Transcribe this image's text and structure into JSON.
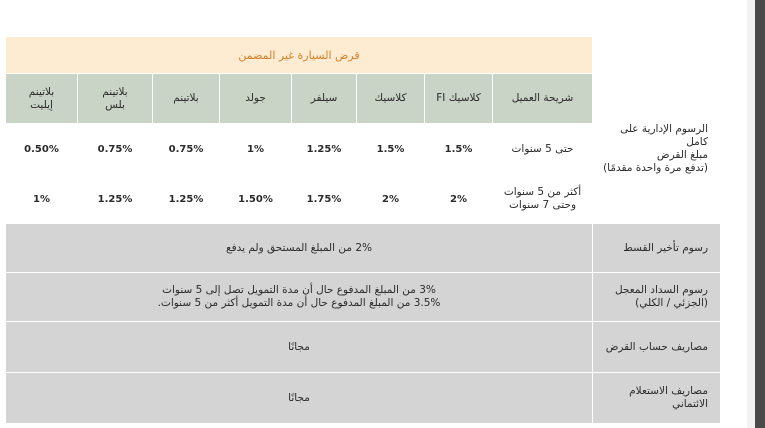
{
  "title": "قرض السيارة غير المضمن",
  "segment_header": "شريحة العميل",
  "segments": [
    "كلاسيك FI",
    "كلاسيك",
    "سيلفر",
    "جولد",
    "بلاتينم",
    "بلاتينم بلس",
    "بلاتينم إيليت"
  ],
  "segments_lines": [
    [
      "كلاسيك FI"
    ],
    [
      "كلاسيك"
    ],
    [
      "سيلفر"
    ],
    [
      "جولد"
    ],
    [
      "بلاتينم"
    ],
    [
      "بلاتينم",
      "بلس"
    ],
    [
      "بلاتينم",
      "إيليت"
    ]
  ],
  "admin_fees": {
    "label_lines": [
      "الرسوم الإدارية على كامل",
      "مبلغ القرض",
      "(تدفع مرة واحدة مقدمًا)"
    ],
    "rows": [
      {
        "term_lines": [
          "حتى 5 سنوات"
        ],
        "values": [
          "1.5%",
          "1.5%",
          "1.25%",
          "1%",
          "0.75%",
          "0.75%",
          "0.50%"
        ]
      },
      {
        "term_lines": [
          "أكثر من 5 سنوات",
          "وحتى 7 سنوات"
        ],
        "values": [
          "2%",
          "2%",
          "1.75%",
          "1.50%",
          "1.25%",
          "1.25%",
          "1%"
        ]
      }
    ]
  },
  "late_fee": {
    "label": "رسوم تأخير القسط",
    "value": "2% من المبلغ المستحق ولم يدفع"
  },
  "early_settlement": {
    "label_lines": [
      "رسوم السداد المعجل",
      "(الجزئي / الكلي)"
    ],
    "value_lines": [
      "3% من المبلغ المدفوع حال أن مدة التمويل تصل إلى 5 سنوات",
      "3.5% من المبلغ المدفوع حال أن مدة التمويل أكثر من 5 سنوات."
    ]
  },
  "account_fees": {
    "label": "مصاريف حساب القرض",
    "value": "مجانًا"
  },
  "credit_inquiry": {
    "label_lines": [
      "مصاريف الاستعلام",
      "الائتماني"
    ],
    "value": "مجانًا"
  },
  "colors": {
    "title_bg": "#fdebd2",
    "title_text": "#d4822a",
    "header_bg": "#c9d3c6",
    "label_bg": "#d4d4d4"
  }
}
